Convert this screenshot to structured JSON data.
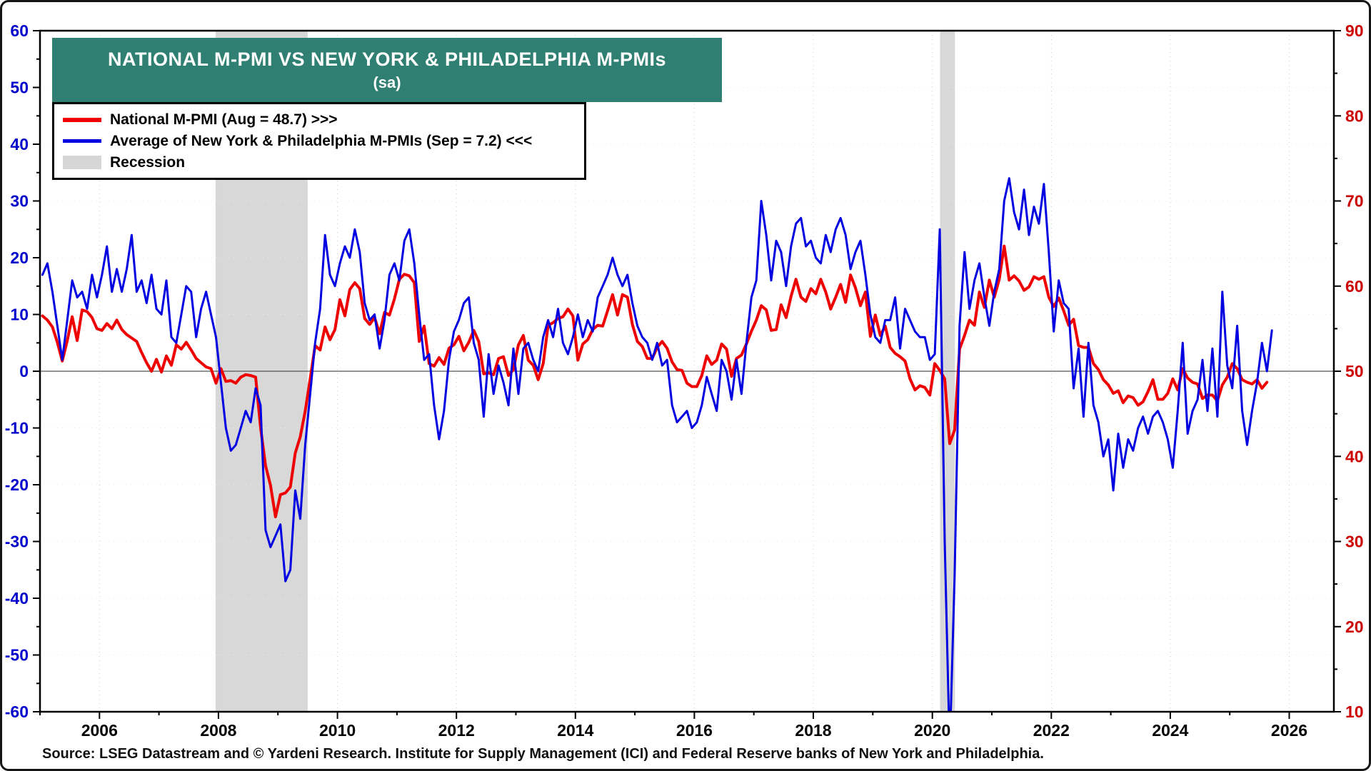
{
  "title": {
    "line1": "NATIONAL M-PMI VS NEW YORK & PHILADELPHIA M-PMIs",
    "line2": "(sa)"
  },
  "legend": {
    "items": [
      {
        "label": "National M-PMI (Aug = 48.7) >>>",
        "swatch": "red-line",
        "color": "#ee0000"
      },
      {
        "label": "Average of New York & Philadelphia M-PMIs (Sep = 7.2) <<<",
        "swatch": "blue-line",
        "color": "#0000e0"
      },
      {
        "label": "Recession",
        "swatch": "gray-box",
        "color": "#d6d6d6"
      }
    ]
  },
  "source": "Source: LSEG Datastream and © Yardeni Research. Institute for Supply Management (ICI) and Federal Reserve banks of New York and Philadelphia.",
  "colors": {
    "national_line": "#ee0000",
    "ny_philly_line": "#0000e0",
    "left_axis_labels": "#0000cc",
    "right_axis_labels": "#cc0000",
    "recession": "#d8d8d8",
    "title_background": "#2f7f72",
    "grid": "#cccccc",
    "zero_line": "#555555"
  },
  "chart_data": {
    "type": "line",
    "title": "NATIONAL M-PMI VS NEW YORK & PHILADELPHIA M-PMIs (sa)",
    "x_start_year": 2005,
    "x_axis": {
      "min": 2005.0,
      "max": 2026.75,
      "tick_step_years": 1,
      "label_step_years": 2,
      "label_years": [
        2006,
        2008,
        2010,
        2012,
        2014,
        2016,
        2018,
        2020,
        2022,
        2024,
        2026
      ]
    },
    "left_axis": {
      "min": -60,
      "max": 60,
      "tick_step": 10,
      "minor_step": 5,
      "series": "Average of New York & Philadelphia M-PMIs"
    },
    "right_axis": {
      "min": 10,
      "max": 90,
      "tick_step": 10,
      "minor_step": 5,
      "series": "National M-PMI"
    },
    "recession_bands": [
      [
        2007.95,
        2009.5
      ],
      [
        2020.13,
        2020.38
      ]
    ],
    "series": [
      {
        "name": "National M-PMI",
        "axis": "right",
        "color": "#ee0000",
        "width": 4,
        "start": "2005-01",
        "latest_label": "Aug = 48.7",
        "values": [
          56.5,
          56.0,
          55.2,
          53.4,
          51.2,
          53.6,
          56.4,
          53.6,
          57.2,
          57.0,
          56.3,
          55.0,
          54.8,
          55.6,
          55.0,
          56.0,
          54.9,
          54.3,
          53.9,
          53.5,
          52.2,
          51.0,
          50.0,
          51.4,
          49.9,
          51.8,
          50.7,
          53.1,
          52.6,
          53.4,
          52.5,
          51.5,
          51.0,
          50.5,
          50.3,
          48.6,
          50.3,
          48.8,
          48.9,
          48.6,
          49.3,
          49.6,
          49.5,
          49.3,
          43.4,
          38.9,
          36.6,
          32.9,
          35.5,
          35.7,
          36.4,
          40.4,
          42.3,
          45.3,
          49.1,
          53.0,
          52.5,
          55.2,
          53.7,
          54.9,
          58.4,
          56.5,
          59.6,
          60.4,
          59.7,
          56.2,
          55.5,
          56.3,
          54.4,
          56.9,
          56.6,
          58.5,
          60.8,
          61.4,
          61.2,
          60.4,
          53.5,
          55.3,
          50.9,
          50.6,
          51.6,
          50.8,
          52.7,
          53.1,
          54.1,
          52.4,
          53.4,
          54.8,
          53.5,
          49.7,
          49.8,
          49.6,
          51.5,
          51.7,
          49.5,
          50.2,
          53.1,
          54.2,
          51.3,
          50.7,
          49.0,
          50.9,
          55.4,
          55.7,
          56.2,
          56.4,
          57.3,
          56.5,
          51.3,
          53.2,
          53.7,
          54.9,
          55.4,
          55.3,
          57.1,
          59.0,
          56.6,
          59.0,
          58.7,
          55.5,
          53.5,
          52.9,
          51.5,
          51.5,
          52.8,
          53.5,
          52.7,
          51.1,
          50.2,
          50.1,
          48.6,
          48.2,
          48.2,
          49.5,
          51.8,
          50.8,
          51.3,
          53.2,
          52.6,
          49.4,
          51.5,
          51.9,
          53.2,
          54.7,
          56.0,
          57.7,
          57.2,
          54.8,
          54.9,
          57.8,
          56.3,
          58.8,
          60.8,
          58.7,
          58.2,
          59.7,
          59.1,
          60.8,
          59.3,
          57.3,
          58.7,
          60.2,
          58.1,
          61.3,
          59.8,
          57.7,
          59.3,
          54.1,
          56.6,
          54.2,
          55.3,
          52.8,
          52.1,
          51.7,
          51.2,
          49.1,
          47.8,
          48.3,
          48.1,
          47.2,
          50.9,
          50.1,
          49.1,
          41.5,
          43.1,
          52.6,
          54.2,
          56.0,
          55.4,
          59.3,
          57.5,
          60.7,
          58.7,
          60.8,
          64.7,
          60.7,
          61.2,
          60.6,
          59.5,
          59.9,
          61.1,
          60.8,
          61.1,
          58.7,
          57.6,
          58.6,
          57.1,
          55.4,
          56.1,
          53.0,
          52.8,
          52.8,
          50.9,
          50.2,
          49.0,
          48.4,
          47.4,
          47.7,
          46.3,
          47.1,
          46.9,
          46.0,
          46.4,
          47.6,
          49.0,
          46.7,
          46.7,
          47.4,
          49.1,
          47.8,
          50.3,
          49.2,
          48.7,
          48.5,
          46.8,
          47.2,
          47.2,
          46.5,
          48.4,
          49.3,
          50.9,
          50.3,
          49.0,
          48.7,
          48.5,
          49.0,
          48.0,
          48.7
        ]
      },
      {
        "name": "Average of New York & Philadelphia M-PMIs",
        "axis": "left",
        "color": "#0000e0",
        "width": 3,
        "start": "2005-01",
        "latest_label": "Sep = 7.2",
        "values": [
          17,
          19,
          14,
          8,
          2,
          9,
          16,
          13,
          14,
          11,
          17,
          13,
          17,
          22,
          14,
          18,
          14,
          18,
          24,
          14,
          16,
          12,
          17,
          11,
          10,
          16,
          6,
          5,
          10,
          15,
          14,
          6,
          11,
          14,
          10,
          6,
          -2,
          -10,
          -14,
          -13,
          -10,
          -7,
          -9,
          -3,
          -6,
          -28,
          -31,
          -29,
          -27,
          -37,
          -35,
          -21,
          -26,
          -13,
          -4,
          5,
          11,
          24,
          17,
          15,
          19,
          22,
          20,
          25,
          21,
          12,
          9,
          10,
          4,
          9,
          17,
          19,
          16,
          23,
          25,
          19,
          10,
          2,
          3,
          -6,
          -12,
          -7,
          2,
          7,
          9,
          12,
          13,
          5,
          2,
          -8,
          3,
          -4,
          1,
          -2,
          -6,
          4,
          -4,
          4,
          5,
          2,
          0,
          6,
          9,
          6,
          11,
          5,
          3,
          6,
          10,
          6,
          9,
          7,
          13,
          15,
          17,
          20,
          17,
          15,
          17,
          12,
          8,
          6,
          5,
          2,
          5,
          1,
          2,
          -6,
          -9,
          -8,
          -7,
          -10,
          -9,
          -6,
          -1,
          -4,
          -7,
          2,
          0,
          -5,
          2,
          -4,
          5,
          13,
          16,
          30,
          24,
          16,
          23,
          21,
          15,
          22,
          26,
          27,
          22,
          23,
          20,
          19,
          24,
          21,
          25,
          27,
          24,
          18,
          21,
          23,
          17,
          10,
          6,
          5,
          9,
          9,
          13,
          4,
          11,
          9,
          7,
          6,
          6,
          2,
          3,
          25,
          -30,
          -67,
          -36,
          8,
          21,
          11,
          16,
          19,
          13,
          8,
          14,
          18,
          30,
          34,
          28,
          25,
          32,
          24,
          29,
          26,
          33,
          21,
          7,
          16,
          12,
          11,
          -3,
          4,
          -8,
          5,
          -6,
          -9,
          -15,
          -12,
          -21,
          -11,
          -17,
          -12,
          -14,
          -10,
          -8,
          -11,
          -8,
          -7,
          -9,
          -12,
          -17,
          -7,
          5,
          -11,
          -7,
          -5,
          2,
          -7,
          4,
          -8,
          14,
          1,
          -3,
          8,
          -7,
          -13,
          -7,
          -2,
          5,
          0,
          7.2
        ]
      }
    ]
  }
}
